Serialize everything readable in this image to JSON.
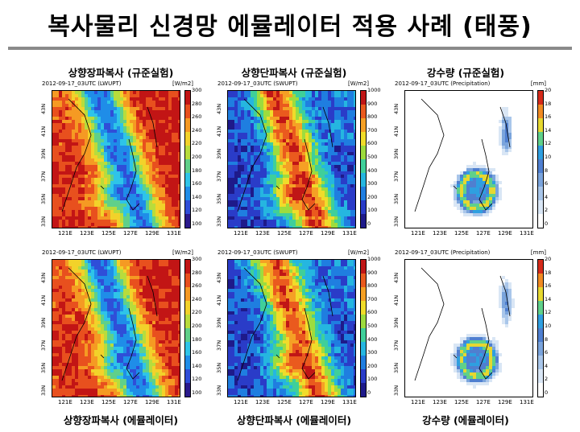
{
  "page": {
    "title": "복사물리 신경망 에뮬레이터 적용 사례 (태풍)"
  },
  "headers": {
    "top": [
      "상향장파복사 (규준실험)",
      "상향단파복사 (규준실험)",
      "강수량 (규준실험)"
    ],
    "bottom": [
      "상향장파복사 (에뮬레이터)",
      "상향단파복사 (에뮬레이터)",
      "강수량 (에뮬레이터)"
    ]
  },
  "chart_data": [
    {
      "type": "heatmap",
      "title": "2012-09-17_03UTC (LWUPT)",
      "unit": "[W/m2]",
      "xticks": [
        "121E",
        "123E",
        "125E",
        "127E",
        "129E",
        "131E"
      ],
      "yticks": [
        "43N",
        "41N",
        "39N",
        "37N",
        "35N",
        "33N"
      ],
      "colorbar": {
        "ticks": [
          300,
          280,
          260,
          240,
          220,
          200,
          180,
          160,
          140,
          120,
          100
        ],
        "range": [
          100,
          300
        ]
      }
    },
    {
      "type": "heatmap",
      "title": "2012-09-17_03UTC (SWUPT)",
      "unit": "[W/m2]",
      "xticks": [
        "121E",
        "123E",
        "125E",
        "127E",
        "129E",
        "131E"
      ],
      "yticks": [
        "43N",
        "41N",
        "39N",
        "37N",
        "35N",
        "33N"
      ],
      "colorbar": {
        "ticks": [
          1000,
          900,
          800,
          700,
          600,
          500,
          400,
          300,
          200,
          100,
          0
        ],
        "range": [
          0,
          1000
        ]
      }
    },
    {
      "type": "heatmap",
      "title": "2012-09-17_03UTC (Precipitation)",
      "unit": "[mm]",
      "xticks": [
        "121E",
        "123E",
        "125E",
        "127E",
        "129E",
        "131E"
      ],
      "yticks": [
        "43N",
        "41N",
        "39N",
        "37N",
        "35N",
        "33N"
      ],
      "colorbar": {
        "ticks": [
          20,
          18,
          16,
          14,
          12,
          10,
          8,
          6,
          4,
          2,
          0
        ],
        "range": [
          0,
          20
        ]
      }
    },
    {
      "type": "heatmap",
      "title": "2012-09-17_03UTC (LWUPT)",
      "unit": "[W/m2]",
      "xticks": [
        "121E",
        "123E",
        "125E",
        "127E",
        "129E",
        "131E"
      ],
      "yticks": [
        "43N",
        "41N",
        "39N",
        "37N",
        "35N",
        "33N"
      ],
      "colorbar": {
        "ticks": [
          300,
          280,
          260,
          240,
          220,
          200,
          180,
          160,
          140,
          120,
          100
        ],
        "range": [
          100,
          300
        ]
      }
    },
    {
      "type": "heatmap",
      "title": "2012-09-17_03UTC (SWUPT)",
      "unit": "[W/m2]",
      "xticks": [
        "121E",
        "123E",
        "125E",
        "127E",
        "129E",
        "131E"
      ],
      "yticks": [
        "43N",
        "41N",
        "39N",
        "37N",
        "35N",
        "33N"
      ],
      "colorbar": {
        "ticks": [
          1000,
          900,
          800,
          700,
          600,
          500,
          400,
          300,
          200,
          100,
          0
        ],
        "range": [
          0,
          1000
        ]
      }
    },
    {
      "type": "heatmap",
      "title": "2012-09-17_03UTC (Precipitation)",
      "unit": "[mm]",
      "xticks": [
        "121E",
        "123E",
        "125E",
        "127E",
        "129E",
        "131E"
      ],
      "yticks": [
        "43N",
        "41N",
        "39N",
        "37N",
        "35N",
        "33N"
      ],
      "colorbar": {
        "ticks": [
          20,
          18,
          16,
          14,
          12,
          10,
          8,
          6,
          4,
          2,
          0
        ],
        "range": [
          0,
          20
        ]
      }
    }
  ],
  "colormaps": {
    "lw": [
      "#2a1a8c",
      "#2f4ed8",
      "#1f8de8",
      "#2ec4e8",
      "#5fd08a",
      "#b8dc3c",
      "#f2d22a",
      "#f59a23",
      "#e8501e",
      "#c21515"
    ],
    "sw": [
      "#1e1a8a",
      "#2a3cc8",
      "#1f7ee0",
      "#25b6e0",
      "#3fcf9a",
      "#9ddc3e",
      "#f0dc2a",
      "#f5a025",
      "#ea5a1e",
      "#c01616"
    ],
    "pr": [
      "#ffffff",
      "#d9e6f5",
      "#a9c6ea",
      "#7aa4dc",
      "#4f7fd0",
      "#2f9fe0",
      "#5fd08a",
      "#e6d830",
      "#f08a22",
      "#d42a1a"
    ]
  }
}
